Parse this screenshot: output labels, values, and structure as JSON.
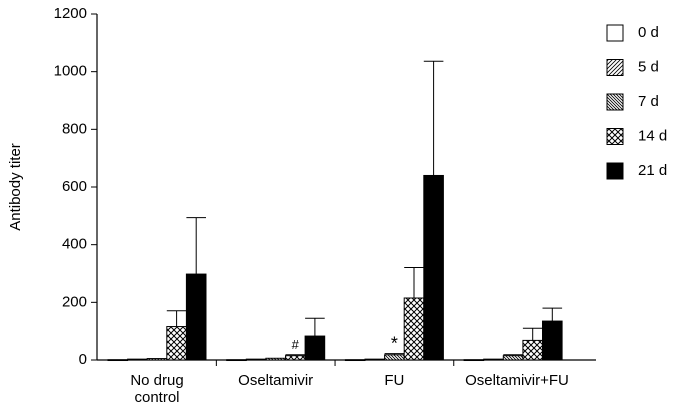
{
  "chart_data": {
    "type": "bar",
    "y_label": "Antibody titer",
    "categories": [
      "No drug control",
      "Oseltamivir",
      "FU",
      "Oseltamivir+FU"
    ],
    "series": [
      {
        "name": "0 d",
        "color": "#ffffff",
        "hatch": "none",
        "values": [
          1,
          1,
          1,
          1
        ],
        "errors": [
          0,
          0,
          0,
          0
        ]
      },
      {
        "name": "5 d",
        "color": "#ffffff",
        "hatch": "forward",
        "values": [
          3,
          3,
          3,
          3
        ],
        "errors": [
          0,
          0,
          0,
          0
        ]
      },
      {
        "name": "7 d",
        "color": "#ffffff",
        "hatch": "backward",
        "values": [
          5,
          6,
          18,
          15
        ],
        "errors": [
          0,
          0,
          4,
          3
        ]
      },
      {
        "name": "14 d",
        "color": "#ffffff",
        "hatch": "cross",
        "values": [
          116,
          15,
          215,
          68
        ],
        "errors": [
          55,
          3,
          106,
          42
        ]
      },
      {
        "name": "21 d",
        "color": "#000000",
        "hatch": "none",
        "values": [
          298,
          83,
          640,
          135
        ],
        "errors": [
          196,
          62,
          396,
          45
        ]
      }
    ],
    "annotations": [
      {
        "text": "#"
      },
      {
        "text": "*"
      }
    ],
    "ylim": [
      0,
      1200
    ],
    "yticks": [
      0,
      200,
      400,
      600,
      800,
      1000,
      1200
    ],
    "grid": false,
    "legend": "right"
  }
}
